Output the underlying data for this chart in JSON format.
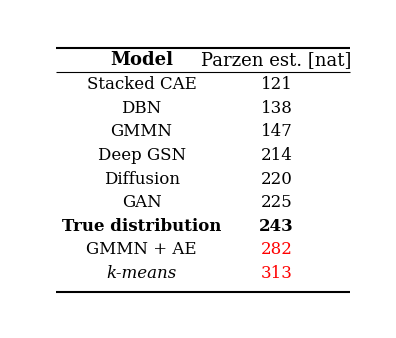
{
  "col_headers": [
    "Model",
    "Parzen est. [nat]"
  ],
  "rows": [
    {
      "model": "Stacked CAE",
      "value": "121",
      "model_bold": false,
      "model_italic": false,
      "value_color": "#000000",
      "value_bold": false
    },
    {
      "model": "DBN",
      "value": "138",
      "model_bold": false,
      "model_italic": false,
      "value_color": "#000000",
      "value_bold": false
    },
    {
      "model": "GMMN",
      "value": "147",
      "model_bold": false,
      "model_italic": false,
      "value_color": "#000000",
      "value_bold": false
    },
    {
      "model": "Deep GSN",
      "value": "214",
      "model_bold": false,
      "model_italic": false,
      "value_color": "#000000",
      "value_bold": false
    },
    {
      "model": "Diffusion",
      "value": "220",
      "model_bold": false,
      "model_italic": false,
      "value_color": "#000000",
      "value_bold": false
    },
    {
      "model": "GAN",
      "value": "225",
      "model_bold": false,
      "model_italic": false,
      "value_color": "#000000",
      "value_bold": false
    },
    {
      "model": "True distribution",
      "value": "243",
      "model_bold": true,
      "model_italic": false,
      "value_color": "#000000",
      "value_bold": true
    },
    {
      "model": "GMMN + AE",
      "value": "282",
      "model_bold": false,
      "model_italic": false,
      "value_color": "#ff0000",
      "value_bold": false
    },
    {
      "model": "k-means",
      "value": "313",
      "model_bold": false,
      "model_italic": true,
      "value_color": "#ff0000",
      "value_bold": false
    }
  ],
  "bg_color": "#ffffff",
  "line_color": "#000000",
  "font_size": 12,
  "header_font_size": 13
}
